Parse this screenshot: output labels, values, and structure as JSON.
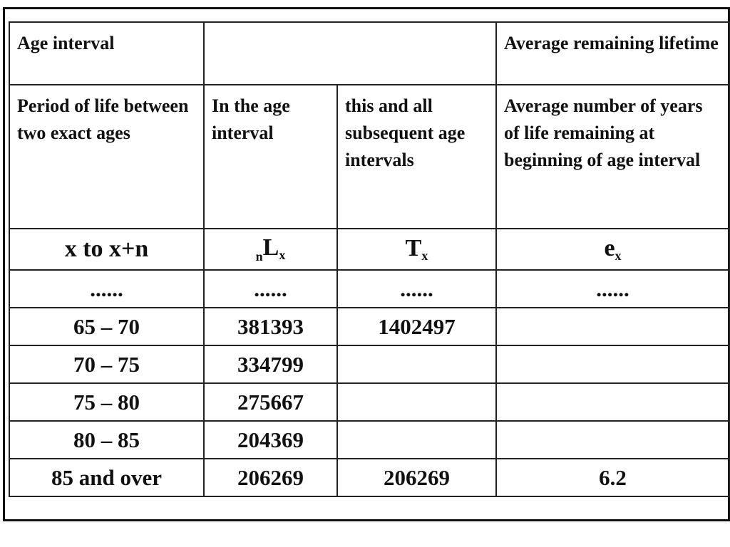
{
  "table": {
    "header": {
      "age_interval": "Age interval",
      "average_remaining": "Average remaining lifetime"
    },
    "descriptions": [
      "Period of life between two exact ages",
      "In the age interval",
      "this and all subsequent age intervals",
      "Average number of years of life remaining at beginning of age interval"
    ],
    "symbols": {
      "age": "x to x+n",
      "Lx": {
        "pre": "n",
        "main": "L",
        "sub": "x"
      },
      "Tx": {
        "main": "T",
        "sub": "x"
      },
      "ex": {
        "main": "e",
        "sub": "x"
      }
    },
    "ellipsis": [
      "......",
      "......",
      "......",
      "......"
    ],
    "rows": [
      {
        "age": "65 – 70",
        "Lx": 381393,
        "Tx": 1402497
      },
      {
        "age": "70 – 75",
        "Lx": 334799
      },
      {
        "age": "75 – 80",
        "Lx": 275667
      },
      {
        "age": "80 – 85",
        "Lx": 204369
      },
      {
        "age": "85 and over",
        "Lx": 206269,
        "Tx": 206269,
        "ex": 6.2
      }
    ]
  }
}
